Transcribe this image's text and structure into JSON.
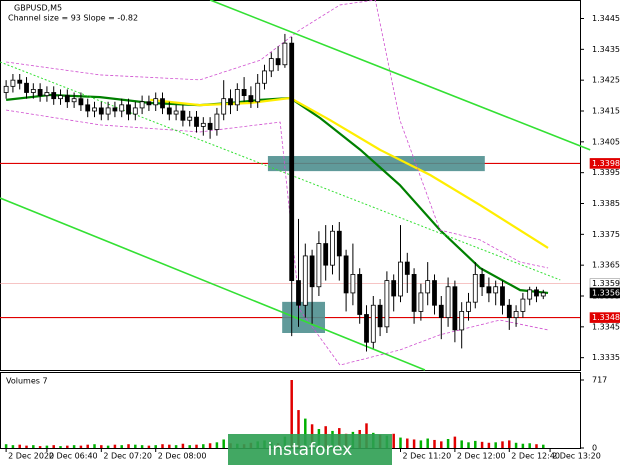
{
  "chart_data": {
    "type": "candlestick",
    "title": "GBPUSD,M5",
    "subtitle": "Channel size = 93 Slope = -0.82",
    "volume_title": "Volumes 7",
    "watermark": "instaforex",
    "xlim": [
      -0.9,
      84.4
    ],
    "xticks": [
      {
        "value": 0,
        "label": "2 Dec 2020"
      },
      {
        "value": 6,
        "label": "2 Dec 06:40"
      },
      {
        "value": 14,
        "label": "2 Dec 07:20"
      },
      {
        "value": 22,
        "label": "2 Dec 08:00"
      },
      {
        "value": 58,
        "label": "2 Dec 11:20"
      },
      {
        "value": 66,
        "label": "2 Dec 12:00"
      },
      {
        "value": 74,
        "label": "2 Dec 12:40"
      },
      {
        "value": 80,
        "label": "2 Dec 13:20"
      }
    ],
    "ylim": [
      1.3331,
      1.3451
    ],
    "yticks": [
      1.3335,
      1.3345,
      1.3355,
      1.3365,
      1.3375,
      1.3385,
      1.3395,
      1.3405,
      1.3415,
      1.3425,
      1.3435,
      1.3445
    ],
    "open": [
      1.3421,
      1.3423,
      1.3425,
      1.3424,
      1.3421,
      1.3422,
      1.342,
      1.3421,
      1.3419,
      1.342,
      1.3418,
      1.3419,
      1.3417,
      1.3415,
      1.3416,
      1.3414,
      1.3416,
      1.3415,
      1.3417,
      1.3414,
      1.3416,
      1.3418,
      1.3417,
      1.3419,
      1.3416,
      1.3414,
      1.3415,
      1.3412,
      1.3413,
      1.341,
      1.3411,
      1.3409,
      1.3414,
      1.3419,
      1.3417,
      1.3422,
      1.342,
      1.3418,
      1.3424,
      1.3428,
      1.3432,
      1.343,
      1.3437,
      1.336,
      1.3352,
      1.3368,
      1.3358,
      1.3372,
      1.3365,
      1.3376,
      1.3368,
      1.3356,
      1.3362,
      1.3349,
      1.334,
      1.3352,
      1.3345,
      1.336,
      1.3355,
      1.3366,
      1.3362,
      1.335,
      1.3356,
      1.336,
      1.3352,
      1.3348,
      1.3358,
      1.3344,
      1.335,
      1.3353,
      1.3362,
      1.3358,
      1.3356,
      1.3358,
      1.3352,
      1.3348,
      1.335,
      1.3354,
      1.3357,
      1.3355
    ],
    "high": [
      1.3425,
      1.3427,
      1.3427,
      1.3426,
      1.3424,
      1.3424,
      1.3423,
      1.3423,
      1.3422,
      1.3422,
      1.3421,
      1.3421,
      1.3419,
      1.3418,
      1.3418,
      1.3418,
      1.3418,
      1.3419,
      1.3419,
      1.3418,
      1.342,
      1.342,
      1.3421,
      1.3421,
      1.3418,
      1.3417,
      1.3417,
      1.3415,
      1.3415,
      1.3413,
      1.3413,
      1.3416,
      1.3425,
      1.3422,
      1.3424,
      1.3426,
      1.3423,
      1.3427,
      1.343,
      1.3434,
      1.3436,
      1.344,
      1.3439,
      1.338,
      1.3372,
      1.337,
      1.3376,
      1.3378,
      1.3378,
      1.3379,
      1.337,
      1.3372,
      1.3364,
      1.3352,
      1.3355,
      1.3354,
      1.3363,
      1.3362,
      1.3378,
      1.3369,
      1.3364,
      1.3359,
      1.3366,
      1.3362,
      1.3355,
      1.3361,
      1.336,
      1.3353,
      1.3356,
      1.3366,
      1.3364,
      1.3361,
      1.336,
      1.336,
      1.3354,
      1.3352,
      1.3356,
      1.3358,
      1.3358,
      1.3357
    ],
    "low": [
      1.3419,
      1.3421,
      1.3422,
      1.3419,
      1.3419,
      1.3418,
      1.3418,
      1.3417,
      1.3417,
      1.3416,
      1.3416,
      1.3415,
      1.3413,
      1.3413,
      1.3412,
      1.3412,
      1.3413,
      1.3413,
      1.3412,
      1.3412,
      1.3414,
      1.3415,
      1.3415,
      1.3414,
      1.3412,
      1.3412,
      1.341,
      1.341,
      1.3408,
      1.3407,
      1.3406,
      1.3407,
      1.3412,
      1.3414,
      1.3415,
      1.3418,
      1.3416,
      1.3416,
      1.3422,
      1.3426,
      1.3428,
      1.3429,
      1.3342,
      1.3345,
      1.3348,
      1.3346,
      1.3355,
      1.336,
      1.3362,
      1.336,
      1.335,
      1.3352,
      1.3346,
      1.3337,
      1.3338,
      1.3342,
      1.3343,
      1.335,
      1.3353,
      1.3356,
      1.3346,
      1.3347,
      1.3352,
      1.3349,
      1.3341,
      1.3345,
      1.334,
      1.3338,
      1.3347,
      1.3351,
      1.3355,
      1.3353,
      1.3352,
      1.3349,
      1.3344,
      1.3345,
      1.3348,
      1.3352,
      1.3353,
      1.3354
    ],
    "close": [
      1.3423,
      1.3425,
      1.3424,
      1.3421,
      1.3422,
      1.342,
      1.3421,
      1.3419,
      1.342,
      1.3418,
      1.3419,
      1.3417,
      1.3415,
      1.3416,
      1.3414,
      1.3416,
      1.3415,
      1.3417,
      1.3414,
      1.3416,
      1.3418,
      1.3417,
      1.3419,
      1.3416,
      1.3414,
      1.3415,
      1.3412,
      1.3413,
      1.341,
      1.3411,
      1.3409,
      1.3414,
      1.3419,
      1.3417,
      1.3422,
      1.342,
      1.3418,
      1.3424,
      1.3428,
      1.3432,
      1.343,
      1.3437,
      1.336,
      1.3352,
      1.3368,
      1.3358,
      1.3372,
      1.3365,
      1.3376,
      1.3368,
      1.3356,
      1.3362,
      1.3349,
      1.334,
      1.3352,
      1.3345,
      1.336,
      1.3355,
      1.3366,
      1.3362,
      1.335,
      1.3356,
      1.336,
      1.3352,
      1.3348,
      1.3358,
      1.3344,
      1.335,
      1.3353,
      1.3362,
      1.3358,
      1.3356,
      1.3358,
      1.3352,
      1.3348,
      1.335,
      1.3354,
      1.3357,
      1.3355,
      1.3356
    ],
    "volume": [
      40,
      30,
      35,
      25,
      30,
      20,
      25,
      30,
      20,
      25,
      30,
      25,
      35,
      40,
      30,
      25,
      35,
      30,
      40,
      35,
      30,
      25,
      30,
      40,
      35,
      30,
      45,
      30,
      35,
      40,
      50,
      60,
      90,
      50,
      45,
      40,
      55,
      70,
      80,
      60,
      50,
      120,
      717,
      400,
      310,
      250,
      200,
      230,
      180,
      210,
      150,
      170,
      190,
      260,
      160,
      140,
      130,
      150,
      110,
      100,
      90,
      80,
      100,
      85,
      70,
      95,
      120,
      80,
      60,
      75,
      65,
      55,
      60,
      70,
      80,
      55,
      45,
      50,
      40,
      35
    ],
    "volume_lim": [
      0,
      717
    ],
    "volume_ticks": [
      0,
      717
    ],
    "up_color": "#00b000",
    "down_color": "#e00000",
    "lines": [
      {
        "color": "#008000",
        "width": 2.2,
        "dash": "",
        "x": [
          0,
          6.5,
          13.8,
          21.2,
          28.5,
          32.9,
          37.4,
          41.8,
          46.2,
          52.1,
          57.9,
          63.8,
          69.7,
          75.6,
          79.7
        ],
        "values": [
          1.34186,
          1.34202,
          1.34195,
          1.34176,
          1.34169,
          1.34176,
          1.34186,
          1.34192,
          1.34127,
          1.34024,
          1.3391,
          1.33764,
          1.33641,
          1.33569,
          1.3356
        ]
      },
      {
        "color": "#ffee00",
        "width": 2.2,
        "dash": "",
        "x": [
          21.2,
          28.5,
          35.9,
          41.8,
          47.6,
          55,
          62.4,
          69.7,
          79.7
        ],
        "values": [
          1.34186,
          1.34169,
          1.34176,
          1.34192,
          1.34121,
          1.34024,
          1.33942,
          1.33845,
          1.33706
        ]
      },
      {
        "color": "#d050d0",
        "width": 0.8,
        "dash": "3 2",
        "x": [
          0,
          13.8,
          28.5,
          37.4,
          43.2,
          49.1,
          54.3,
          57.9,
          63.8,
          69.7,
          75.6,
          79.7
        ],
        "values": [
          1.34309,
          1.34267,
          1.34251,
          1.34315,
          1.34413,
          1.34494,
          1.3451,
          1.34121,
          1.33764,
          1.33732,
          1.3366,
          1.33641
        ]
      },
      {
        "color": "#d050d0",
        "width": 0.8,
        "dash": "3 2",
        "x": [
          0,
          13.8,
          28.5,
          40.3,
          43.2,
          49.1,
          57.9,
          63.8,
          72.6,
          79.7
        ],
        "values": [
          1.34153,
          1.34105,
          1.34082,
          1.34114,
          1.33505,
          1.33326,
          1.33375,
          1.33424,
          1.33472,
          1.3344
        ]
      },
      {
        "color": "#33e033",
        "width": 1.6,
        "dash": "",
        "x": [
          30,
          85.9
        ],
        "values": [
          1.3451,
          1.34024
        ]
      },
      {
        "color": "#33e033",
        "width": 1.6,
        "dash": "",
        "x": [
          -0.9,
          61.6
        ],
        "values": [
          1.33868,
          1.3331
        ]
      },
      {
        "color": "#33e033",
        "width": 1,
        "dash": "2 2",
        "x": [
          -0.9,
          81.5
        ],
        "values": [
          1.34309,
          1.33602
        ]
      }
    ],
    "boxes": [
      {
        "color": "#4f8f8f",
        "x": [
          38.5,
          70.4
        ],
        "values": [
          1.34004,
          1.33955
        ]
      },
      {
        "color": "#4f8f8f",
        "x": [
          40.6,
          46.9
        ],
        "values": [
          1.33531,
          1.3343
        ]
      }
    ],
    "levels": [
      {
        "value": 1.3398,
        "color": "#e00000",
        "text_color": "#ffffff",
        "line": true
      },
      {
        "value": 1.3359,
        "color": "#ffffff",
        "text_color": "#000000",
        "line": true
      },
      {
        "value": 1.3356,
        "color": "#000000",
        "text_color": "#ffffff",
        "line": false
      },
      {
        "value": 1.3348,
        "color": "#e00000",
        "text_color": "#ffffff",
        "line": true
      }
    ]
  }
}
